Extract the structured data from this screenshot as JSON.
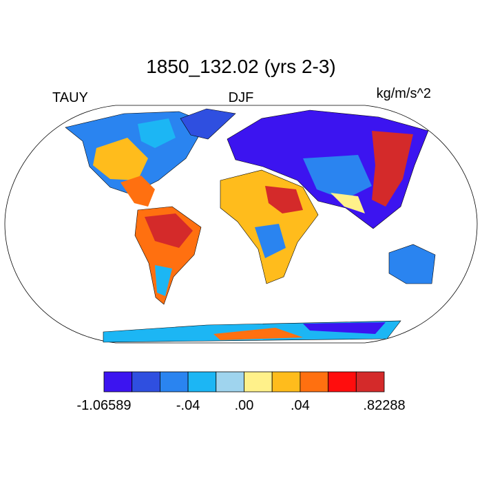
{
  "title": "1850_132.02 (yrs 2-3)",
  "left_label": "TAUY",
  "center_label": "DJF",
  "right_label": "kg/m/s^2",
  "colorbar": {
    "colors": [
      "#3c14f0",
      "#2f4fe0",
      "#2a84f0",
      "#1cb6f4",
      "#9fd4ee",
      "#fff18a",
      "#ffbc1c",
      "#ff7010",
      "#ff0d0d",
      "#d42a2a"
    ],
    "boundary_labels": [
      "-1.06589",
      null,
      null,
      "-.04",
      null,
      ".00",
      null,
      ".04",
      null,
      null,
      ".82288"
    ]
  }
}
